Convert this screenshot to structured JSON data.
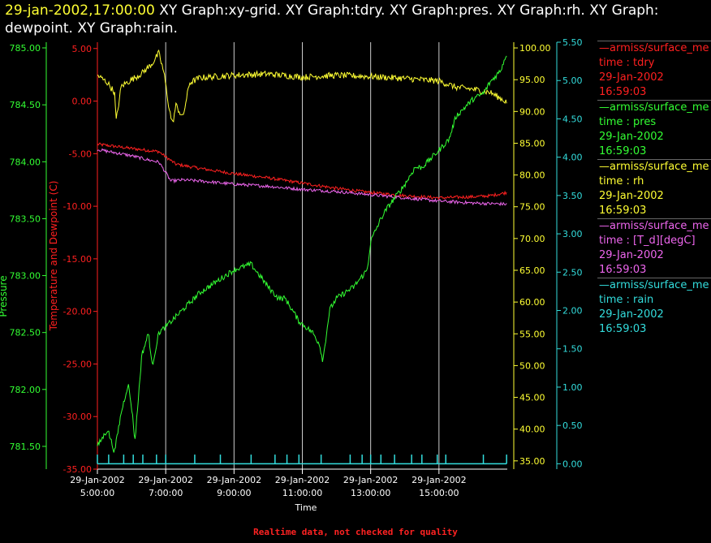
{
  "header": {
    "timestamp": "29-jan-2002,17:00:00",
    "titles": "XY Graph:xy-grid.  XY Graph:tdry.  XY Graph:pres.  XY Graph:rh.  XY Graph: dewpoint.  XY Graph:rain."
  },
  "footer": {
    "note": "Realtime data, not checked for quality"
  },
  "legend": [
    {
      "source": "—armiss/surface_me",
      "var": "time : tdry",
      "date": "29-Jan-2002",
      "time": "16:59:03",
      "color": "#ff2020"
    },
    {
      "source": "—armiss/surface_me",
      "var": "time : pres",
      "date": "29-Jan-2002",
      "time": "16:59:03",
      "color": "#33ff33"
    },
    {
      "source": "—armiss/surface_me",
      "var": "time : rh",
      "date": "29-Jan-2002",
      "time": "16:59:03",
      "color": "#ffff33"
    },
    {
      "source": "—armiss/surface_me",
      "var": "time : [T_d][degC]",
      "date": "29-Jan-2002",
      "time": "16:59:03",
      "color": "#ee66ee"
    },
    {
      "source": "—armiss/surface_me",
      "var": "time : rain",
      "date": "29-Jan-2002",
      "time": "16:59:03",
      "color": "#33dddd"
    }
  ],
  "chart_data": {
    "type": "line",
    "xlabel": "Time",
    "x_ticks": [
      {
        "date": "29-Jan-2002",
        "time": "5:00:00",
        "hour": 5
      },
      {
        "date": "29-Jan-2002",
        "time": "7:00:00",
        "hour": 7
      },
      {
        "date": "29-Jan-2002",
        "time": "9:00:00",
        "hour": 9
      },
      {
        "date": "29-Jan-2002",
        "time": "11:00:00",
        "hour": 11
      },
      {
        "date": "29-Jan-2002",
        "time": "13:00:00",
        "hour": 13
      },
      {
        "date": "29-Jan-2002",
        "time": "15:00:00",
        "hour": 15
      }
    ],
    "x_range_hours": [
      5,
      17
    ],
    "grid": "vertical",
    "axes": {
      "pressure": {
        "label": "Pressure",
        "range": [
          781.3,
          785.05
        ],
        "ticks": [
          "781.50",
          "782.00",
          "782.50",
          "783.00",
          "783.50",
          "784.00",
          "784.50",
          "785.00"
        ],
        "color": "#33ff33"
      },
      "temperature": {
        "label": "Temperature and Dewpoint (C)",
        "range": [
          -35,
          5.6
        ],
        "ticks": [
          "-35.00",
          "-30.00",
          "-25.00",
          "-20.00",
          "-15.00",
          "-10.00",
          "-5.00",
          "0.00",
          "5.00"
        ],
        "color": "#ff2020"
      },
      "rh": {
        "range": [
          33.7,
          100.9
        ],
        "ticks": [
          "35.00",
          "40.00",
          "45.00",
          "50.00",
          "55.00",
          "60.00",
          "65.00",
          "70.00",
          "75.00",
          "80.00",
          "85.00",
          "90.00",
          "95.00",
          "100.00"
        ],
        "color": "#ffff33"
      },
      "rain": {
        "range": [
          -0.07,
          5.5
        ],
        "ticks": [
          "0.00",
          "0.50",
          "1.00",
          "1.50",
          "2.00",
          "2.50",
          "3.00",
          "3.50",
          "4.00",
          "4.50",
          "5.00",
          "5.50"
        ],
        "color": "#33dddd"
      }
    },
    "series": [
      {
        "name": "tdry",
        "axis": "temperature",
        "color": "#ff2020",
        "noise": 0.15,
        "x": [
          5.0,
          5.5,
          6.0,
          6.5,
          6.8,
          7.0,
          7.3,
          8.0,
          9.0,
          10.0,
          11.0,
          12.0,
          13.0,
          14.0,
          15.0,
          16.0,
          16.5,
          16.98
        ],
        "y": [
          -4.1,
          -4.3,
          -4.5,
          -4.7,
          -4.8,
          -5.3,
          -6.0,
          -6.4,
          -6.9,
          -7.3,
          -7.8,
          -8.3,
          -8.7,
          -9.0,
          -9.2,
          -9.1,
          -9.0,
          -8.7
        ]
      },
      {
        "name": "dewpoint",
        "axis": "temperature",
        "color": "#ee66ee",
        "noise": 0.15,
        "x": [
          5.0,
          6.0,
          6.5,
          6.8,
          7.0,
          7.15,
          7.5,
          8.0,
          9.0,
          10.0,
          11.0,
          12.0,
          13.0,
          14.0,
          15.0,
          16.0,
          16.98
        ],
        "y": [
          -4.6,
          -5.2,
          -5.6,
          -5.8,
          -6.8,
          -7.6,
          -7.5,
          -7.6,
          -7.9,
          -8.1,
          -8.4,
          -8.6,
          -8.9,
          -9.2,
          -9.5,
          -9.7,
          -9.8
        ]
      },
      {
        "name": "rh",
        "axis": "rh",
        "color": "#ffff33",
        "noise": 0.5,
        "x": [
          5.0,
          5.3,
          5.5,
          5.55,
          5.7,
          6.0,
          6.3,
          6.6,
          6.8,
          6.95,
          7.1,
          7.2,
          7.3,
          7.5,
          7.7,
          8.0,
          9.0,
          10.0,
          11.0,
          12.0,
          13.0,
          14.0,
          15.0,
          15.5,
          16.0,
          16.5,
          16.98
        ],
        "y": [
          95.7,
          94.5,
          93.0,
          88.5,
          94.0,
          95.0,
          96.0,
          97.5,
          99.2,
          96.0,
          90.5,
          88.0,
          91.0,
          89.0,
          94.5,
          95.3,
          95.7,
          95.9,
          95.4,
          95.7,
          95.5,
          95.2,
          94.8,
          93.8,
          93.5,
          93.0,
          91.5
        ]
      },
      {
        "name": "pressure",
        "axis": "pressure",
        "color": "#33ff33",
        "noise": 0.025,
        "x": [
          5.0,
          5.3,
          5.5,
          5.7,
          5.9,
          6.0,
          6.1,
          6.3,
          6.5,
          6.6,
          6.8,
          7.0,
          7.5,
          8.0,
          8.5,
          9.0,
          9.5,
          10.0,
          10.3,
          10.5,
          10.9,
          11.3,
          11.5,
          11.6,
          11.8,
          12.0,
          12.5,
          12.9,
          13.0,
          13.3,
          13.5,
          14.0,
          14.3,
          14.5,
          15.0,
          15.3,
          15.5,
          16.0,
          16.3,
          16.5,
          16.8,
          16.98
        ],
        "y": [
          781.5,
          781.65,
          781.45,
          781.8,
          782.05,
          781.85,
          781.55,
          782.3,
          782.5,
          782.2,
          782.5,
          782.55,
          782.7,
          782.85,
          782.95,
          783.05,
          783.1,
          782.9,
          782.8,
          782.8,
          782.6,
          782.5,
          782.4,
          782.25,
          782.7,
          782.8,
          782.9,
          783.05,
          783.3,
          783.5,
          783.6,
          783.8,
          783.95,
          783.95,
          784.1,
          784.2,
          784.4,
          784.55,
          784.6,
          784.7,
          784.8,
          784.95
        ]
      },
      {
        "name": "rain",
        "axis": "rain",
        "color": "#33dddd",
        "type": "spikes",
        "baseline": 0.0,
        "spike_height": 0.12,
        "x": [
          5.0,
          5.33,
          5.77,
          6.05,
          6.33,
          6.73,
          7.0,
          7.85,
          8.6,
          9.5,
          10.2,
          10.55,
          10.9,
          11.55,
          12.4,
          12.75,
          13.0,
          13.3,
          13.7,
          14.2,
          14.5,
          14.95,
          15.2,
          16.3,
          16.98
        ]
      }
    ]
  }
}
